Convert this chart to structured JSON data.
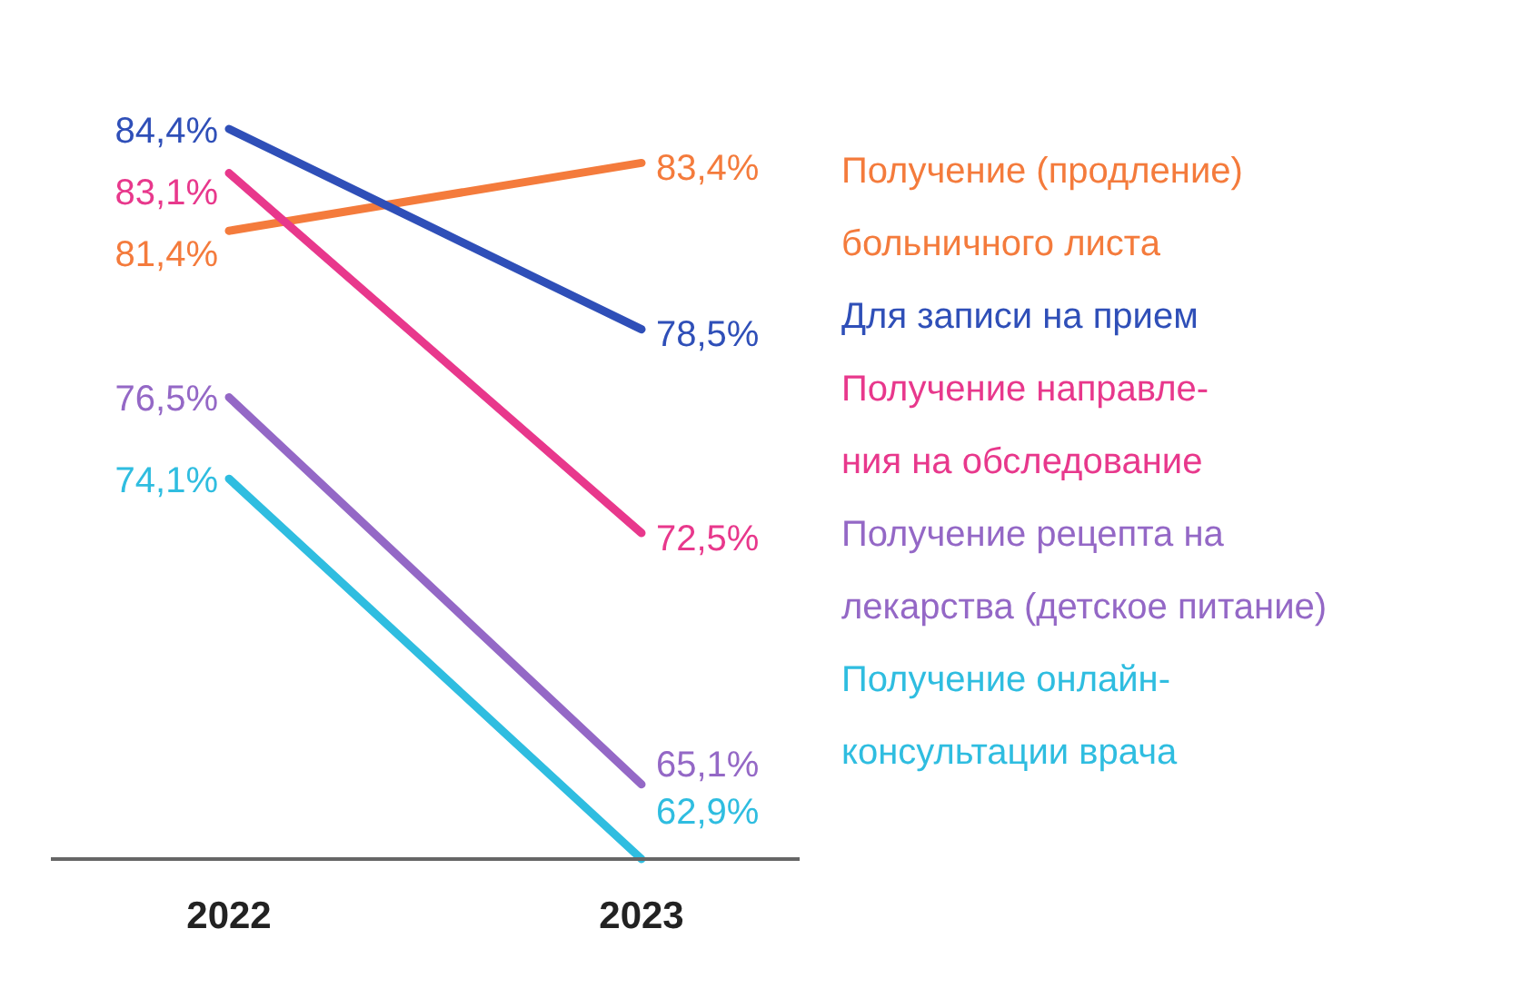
{
  "chart_data": {
    "type": "line",
    "categories": [
      "2022",
      "2023"
    ],
    "relative": false,
    "legend": "right",
    "marker": "none",
    "line_style": "solid",
    "series": [
      {
        "name": "Получение (продление)\nбольничного листа",
        "color": "#f47b3c",
        "values": [
          81.4,
          83.4
        ],
        "value_labels": [
          "81,4%",
          "83,4%"
        ]
      },
      {
        "name": "Для записи на прием",
        "color": "#2f4fb8",
        "values": [
          84.4,
          78.5
        ],
        "value_labels": [
          "84,4%",
          "78,5%"
        ]
      },
      {
        "name": "Получение направле-\nния на обследование",
        "color": "#e8388c",
        "values": [
          83.1,
          72.5
        ],
        "value_labels": [
          "83,1%",
          "72,5%"
        ]
      },
      {
        "name": "Получение рецепта на\nлекарства (детское питание)",
        "color": "#9468c6",
        "values": [
          76.5,
          65.1
        ],
        "value_labels": [
          "76,5%",
          "65,1%"
        ]
      },
      {
        "name": "Получение онлайн-\nконсультации врача",
        "color": "#2fbde0",
        "values": [
          74.1,
          62.9
        ],
        "value_labels": [
          "74,1%",
          "62,9%"
        ]
      }
    ]
  }
}
